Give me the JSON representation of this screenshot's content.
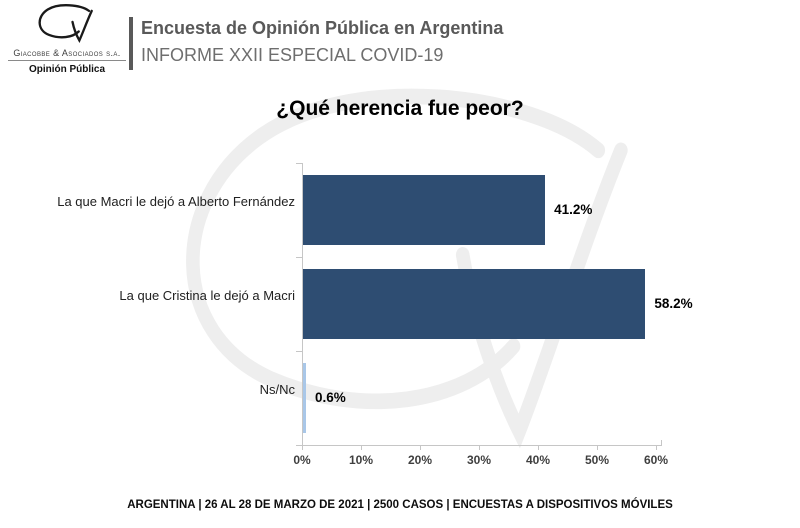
{
  "header": {
    "logo": {
      "company": "Giacobbe & Asociados s.a.",
      "tagline": "Opinión Pública"
    },
    "title": "Encuesta de Opinión Pública en Argentina",
    "subtitle": "INFORME XXII ESPECIAL COVID-19"
  },
  "chart_data": {
    "type": "bar",
    "orientation": "horizontal",
    "title": "¿Qué herencia fue peor?",
    "categories": [
      "La que Macri le dejó a Alberto Fernández",
      "La que Cristina le dejó a Macri",
      "Ns/Nc"
    ],
    "values": [
      41.2,
      58.2,
      0.6
    ],
    "value_labels": [
      "41.2%",
      "58.2%",
      "0.6%"
    ],
    "bar_colors": [
      "#2E4D72",
      "#2E4D72",
      "#A9C7E8"
    ],
    "xlim": [
      0,
      60
    ],
    "x_ticks": [
      0,
      10,
      20,
      30,
      40,
      50,
      60
    ],
    "x_tick_labels": [
      "0%",
      "10%",
      "20%",
      "30%",
      "40%",
      "50%",
      "60%"
    ],
    "grid": false,
    "legend": false
  },
  "footer": {
    "text": "ARGENTINA | 26 AL 28 DE MARZO DE 2021 | 2500 CASOS | ENCUESTAS A DISPOSITIVOS MÓVILES"
  },
  "colors": {
    "bar_primary": "#2E4D72",
    "bar_secondary": "#A9C7E8",
    "axis_line": "#C6C6C6",
    "header_title": "#595959",
    "header_subtitle": "#6E6E6E",
    "watermark": "#EEEEEE"
  }
}
